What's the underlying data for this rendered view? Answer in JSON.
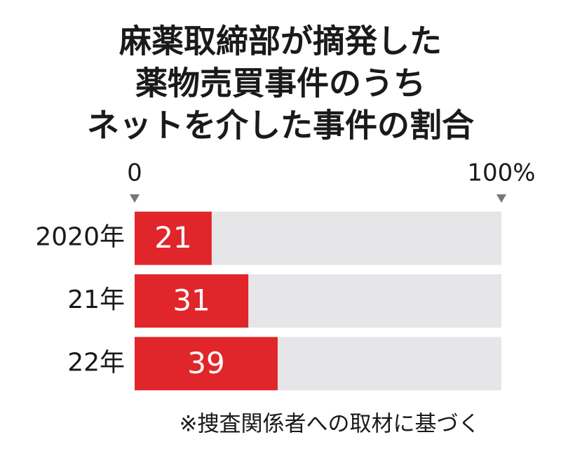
{
  "chart_data": {
    "type": "bar",
    "orientation": "horizontal",
    "title": [
      "麻薬取締部が摘発した",
      "薬物売買事件のうち",
      "ネットを介した事件の割合"
    ],
    "categories": [
      "2020年",
      "21年",
      "22年"
    ],
    "values": [
      21,
      31,
      39
    ],
    "color": "#e0262a",
    "track_color": "#e6e6e8",
    "xlim": [
      0,
      100
    ],
    "xticks": [
      0,
      {
        "value": 100,
        "label": "100%"
      }
    ],
    "note": "※捜査関係者への取材に基づく"
  }
}
